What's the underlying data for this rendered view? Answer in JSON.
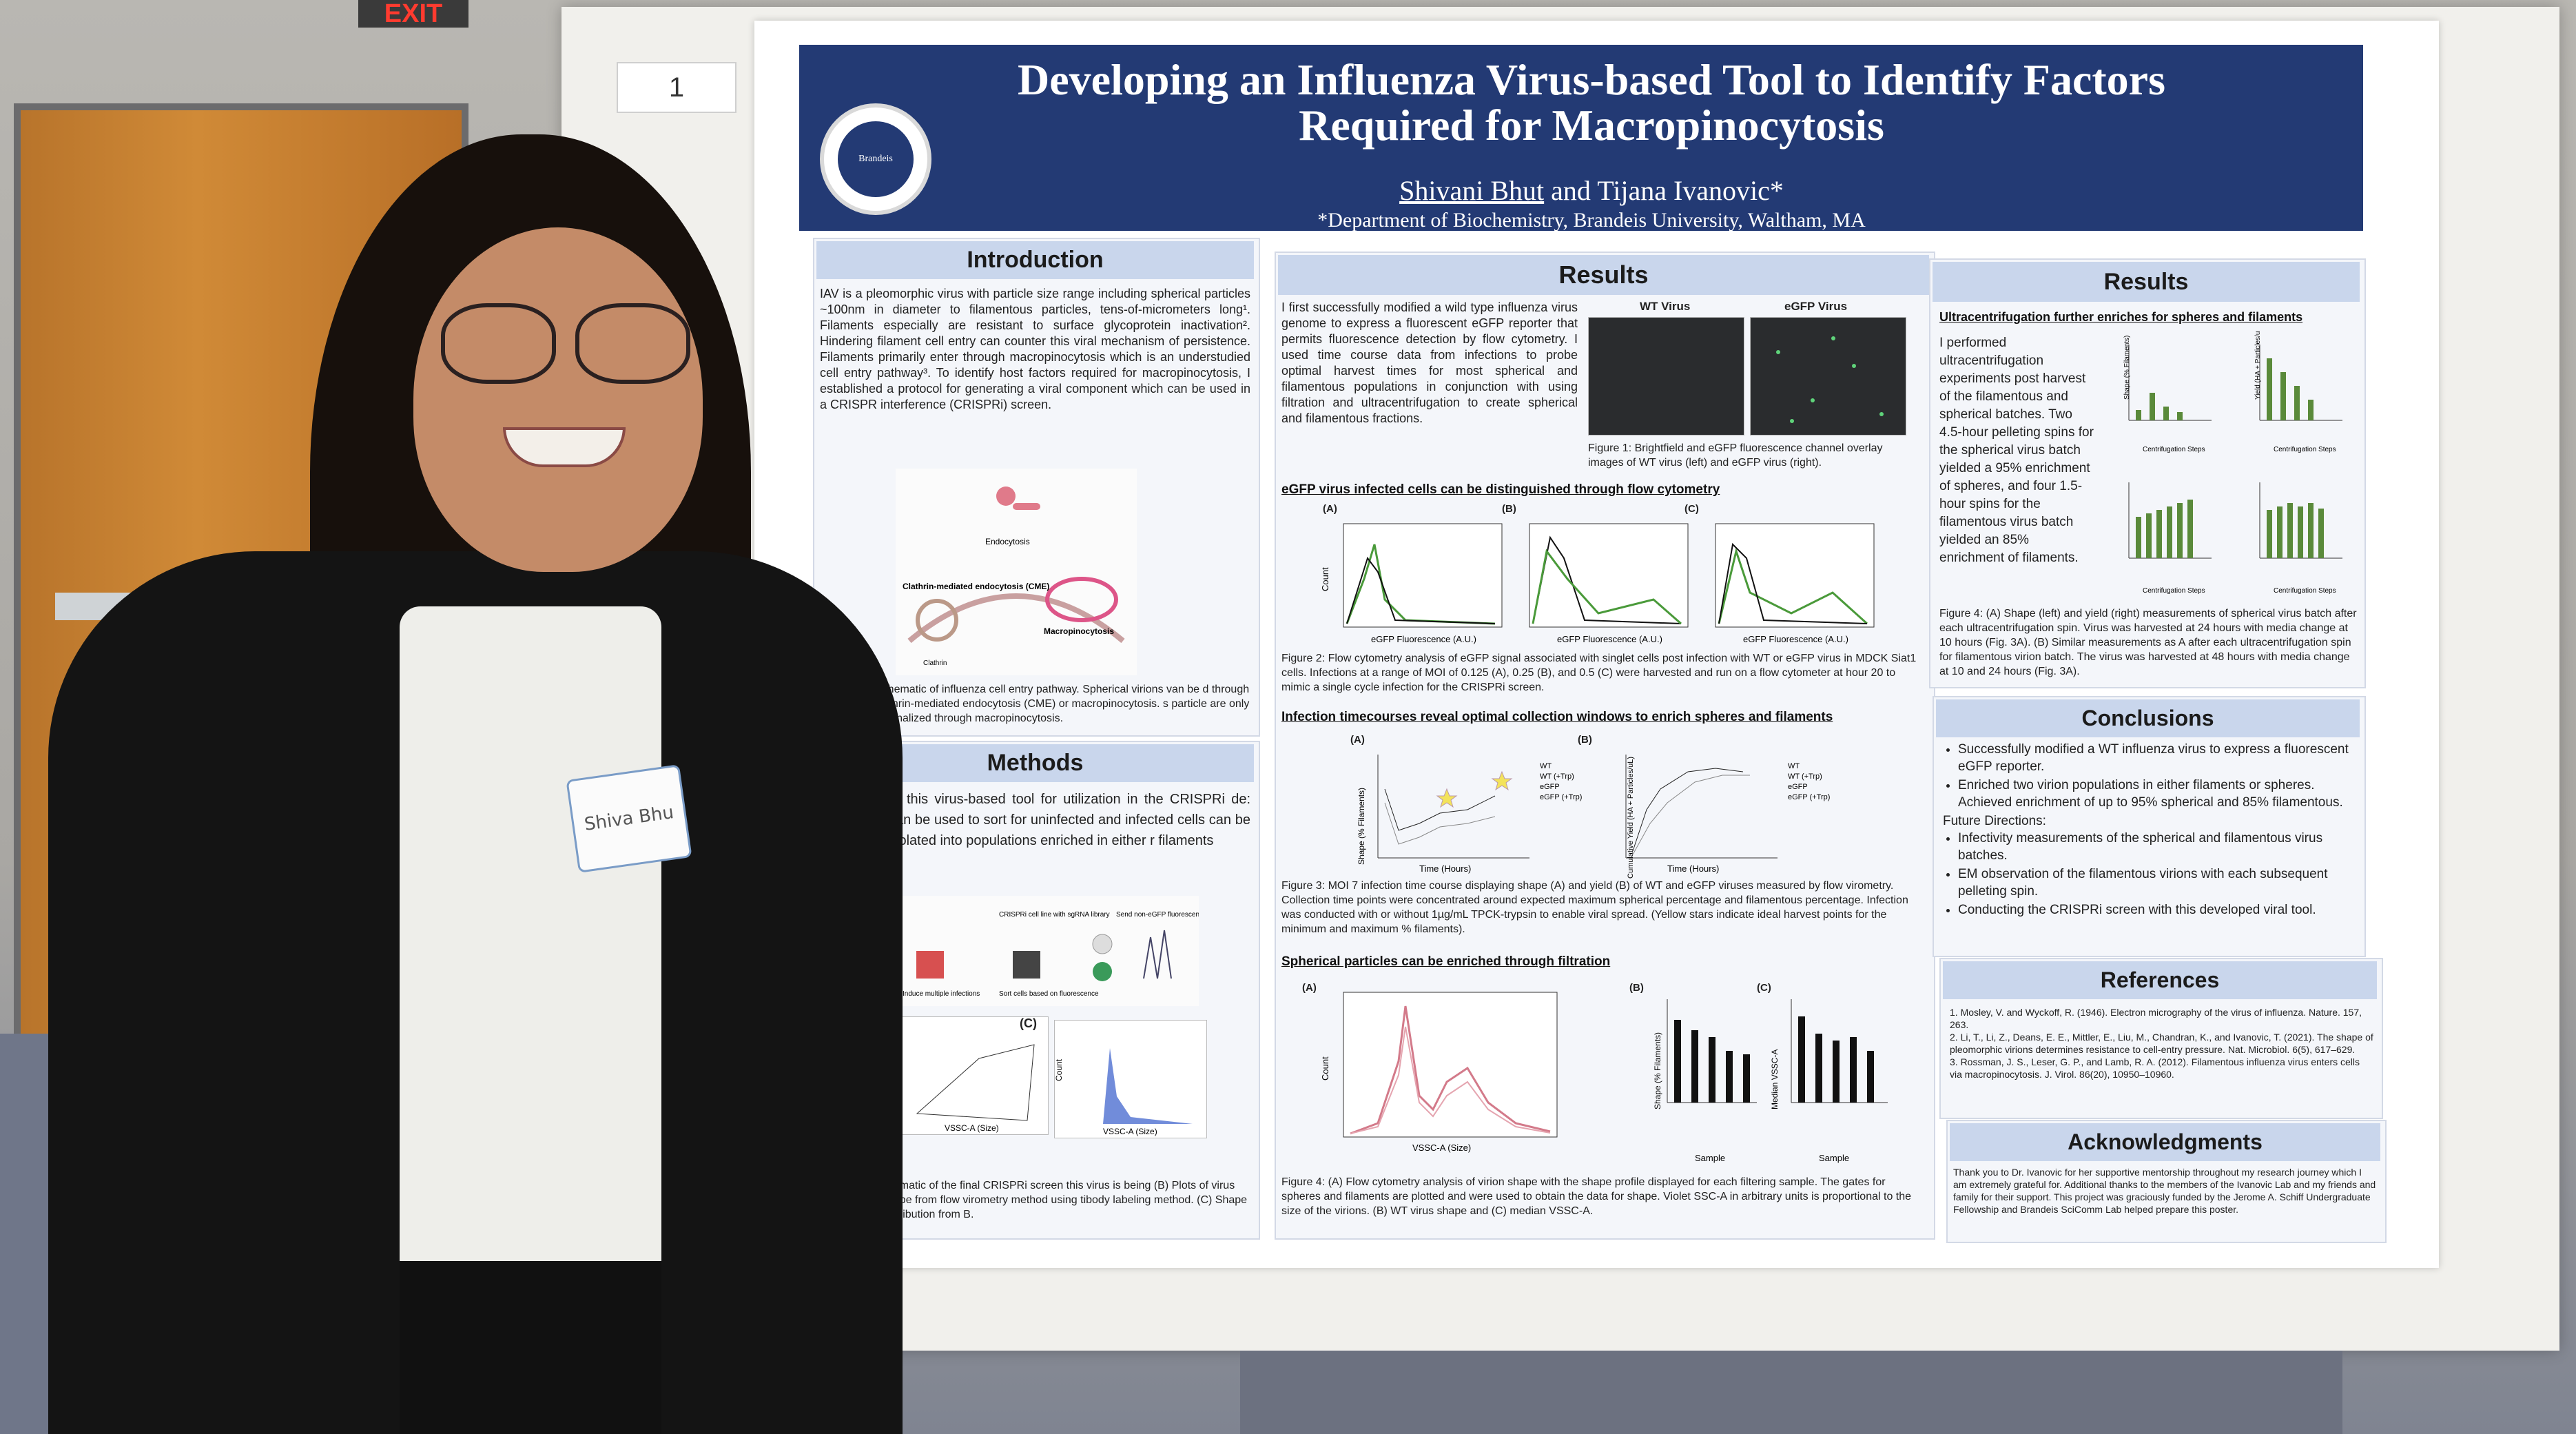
{
  "scene": {
    "exit_sign": "EXIT",
    "poster_number": "1"
  },
  "poster": {
    "title_line1": "Developing an Influenza Virus-based Tool to Identify Factors",
    "title_line2": "Required for Macropinocytosis",
    "author1": "Shivani Bhut",
    "author_join": "and",
    "author2": "Tijana Ivanovic*",
    "affiliation": "*Department of Biochemistry, Brandeis University, Waltham, MA",
    "seal_text": "Brandeis"
  },
  "intro": {
    "heading": "Introduction",
    "text": "IAV is a pleomorphic virus with particle size range including spherical particles ~100nm in diameter to filamentous particles, tens-of-micrometers long¹. Filaments especially are resistant to surface glycoprotein inactivation². Hindering filament cell entry can counter this viral mechanism of persistence. Filaments primarily enter through macropinocytosis which is an understudied cell entry pathway³. To identify host factors required for macropinocytosis, I established a protocol for generating a viral component which can be used in a CRISPR interference (CRISPRi) screen.",
    "diagram_labels": [
      "Endocytosis",
      "Clathrin-mediated endocytosis (CME)",
      "Macropinocytosis",
      "Clathrin"
    ],
    "caption": "Schematic of influenza cell entry pathway. Spherical virions van be d through clathrin-mediated endocytosis (CME) or macropinocytosis. s particle are only internalized through macropinocytosis."
  },
  "methods": {
    "heading": "Methods",
    "text": "of this virus-based tool for utilization in the CRISPRi de: can be used to sort for uninfected and infected cells can be isolated into populations enriched in either r filaments",
    "diagram_labels": [
      "CRISPRi cell line with sgRNA library",
      "Induce multiple infections",
      "Sort cells based on fluorescence",
      "Send non-eGFP fluorescent cells for sequencing"
    ],
    "panel_c": "(C)",
    "axis_x1": "VSSC-A (Size)",
    "axis_x2": "VSSC-A (Size)",
    "axis_y": "Count",
    "caption": "chematic of the final CRISPRi screen this virus is being (B) Plots of virus shape from flow virometry method using tibody labeling method. (C) Shape distribution from B."
  },
  "results1": {
    "heading": "Results",
    "text": "I first successfully modified a wild type influenza virus genome to express a fluorescent eGFP reporter that permits fluorescence detection by flow cytometry. I used time course data from infections to probe optimal harvest times for most spherical and filamentous populations in conjunction with using filtration and ultracentrifugation to create spherical and filamentous fractions.",
    "img_label_wt": "WT Virus",
    "img_label_egfp": "eGFP Virus",
    "fig1_caption": "Figure 1: Brightfield and eGFP fluorescence channel overlay images of WT virus (left) and eGFP virus (right).",
    "sub1": "eGFP virus infected cells can be distinguished through flow cytometry",
    "fig2_panels": [
      "(A)",
      "(B)",
      "(C)"
    ],
    "fig2_xlabel": "eGFP Fluorescence (A.U.)",
    "fig2_ylabel": "Count",
    "fig2_caption": "Figure 2: Flow cytometry analysis of eGFP signal associated with singlet cells post infection with WT or eGFP virus in MDCK Siat1 cells. Infections at a range of MOI of 0.125 (A), 0.25 (B), and 0.5 (C) were harvested and run on a flow cytometer at hour 20 to mimic a single cycle infection for the CRISPRi screen.",
    "sub2": "Infection timecourses reveal optimal collection windows to enrich spheres and filaments",
    "fig3_panels": [
      "(A)",
      "(B)"
    ],
    "fig3_xlabel": "Time (Hours)",
    "fig3_ylabel_a": "Shape (% Filaments)",
    "fig3_ylabel_b": "Cumulative Yield (HA + Particles/uL)",
    "fig3_legend": [
      "WT",
      "WT (+Trp)",
      "eGFP",
      "eGFP (+Trp)"
    ],
    "fig3_caption": "Figure 3: MOI 7 infection time course displaying shape (A) and yield (B) of WT and eGFP viruses measured by flow virometry. Collection time points were concentrated around expected maximum spherical percentage and filamentous percentage. Infection was conducted with or without 1µg/mL TPCK-trypsin to enable viral spread. (Yellow stars indicate ideal harvest points for the minimum and maximum % filaments).",
    "sub3": "Spherical particles can be enriched through filtration",
    "fig4_panels": [
      "(A)",
      "(B)",
      "(C)"
    ],
    "fig4_xlabel_a": "VSSC-A (Size)",
    "fig4_ylabel_a": "Count",
    "fig4_ylabel_b": "Shape (% Filaments)",
    "fig4_ylabel_c": "Median VSSC-A",
    "fig4_xlabel_bc": "Sample",
    "fig4_caption": "Figure 4: (A) Flow cytometry analysis of virion shape with the shape profile displayed for each filtering sample. The gates for spheres and filaments are plotted and were used to obtain the data for shape. Violet SSC-A in arbitrary units is proportional to the size of the virions. (B) WT virus shape and (C) median VSSC-A."
  },
  "results2": {
    "heading": "Results",
    "sub": "Ultracentrifugation further enriches for spheres and filaments",
    "text": "I performed ultracentrifugation experiments post harvest of the filamentous and spherical batches. Two 4.5-hour pelleting spins for the spherical virus batch yielded a 95% enrichment of spheres, and four 1.5-hour spins for the filamentous virus batch yielded an 85% enrichment of filaments.",
    "chart_xlabel": "Centrifugation Steps",
    "chart_ylabel_shape": "Shape (% Filaments)",
    "chart_ylabel_yield": "Yield (HA + Particles/uL)",
    "caption": "Figure 4: (A) Shape (left) and yield (right) measurements of spherical virus batch after each ultracentrifugation spin. Virus was harvested at 24 hours with media change at 10 hours (Fig. 3A). (B) Similar measurements as A after each ultracentrifugation spin for filamentous virion batch. The virus was harvested at 48 hours with media change at 10 and 24 hours (Fig. 3A)."
  },
  "conclusions": {
    "heading": "Conclusions",
    "items": [
      "Successfully modified a WT influenza virus to express a fluorescent eGFP reporter.",
      "Enriched two virion populations in either filaments or spheres. Achieved enrichment of up to 95% spherical and 85% filamentous."
    ],
    "future_heading": "Future Directions:",
    "future_items": [
      "Infectivity measurements of the spherical and filamentous virus batches.",
      "EM observation of the filamentous virions with each subsequent pelleting spin.",
      "Conducting the CRISPRi screen with this developed viral tool."
    ]
  },
  "references": {
    "heading": "References",
    "items": [
      "1. Mosley, V. and Wyckoff, R. (1946). Electron micrography of the virus of influenza. Nature. 157, 263.",
      "2. Li, T., Li, Z., Deans, E. E., Mittler, E., Liu, M., Chandran, K., and Ivanovic, T. (2021). The shape of pleomorphic virions determines resistance to cell-entry pressure. Nat. Microbiol. 6(5), 617–629.",
      "3. Rossman, J. S., Leser, G. P., and Lamb, R. A. (2012). Filamentous influenza virus enters cells via macropinocytosis. J. Virol. 86(20), 10950–10960."
    ]
  },
  "acknowledgments": {
    "heading": "Acknowledgments",
    "text": "Thank you to Dr. Ivanovic for her supportive mentorship throughout my research journey which I am extremely grateful for. Additional thanks to the members of the Ivanovic Lab and my friends and family for their support. This project was graciously funded by the Jerome A. Schiff Undergraduate Fellowship and Brandeis SciComm Lab helped prepare this poster."
  },
  "person": {
    "nametag": "Shiva Bhu"
  },
  "colors": {
    "banner": "#233a74",
    "section_head": "#c9d6ec",
    "door": "#d08a37"
  }
}
